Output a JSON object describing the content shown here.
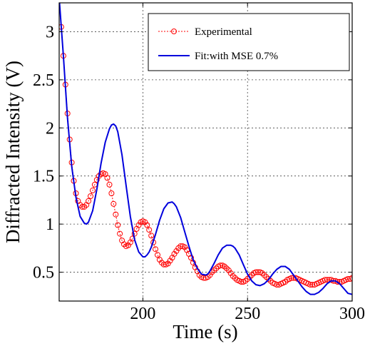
{
  "chart_data": {
    "type": "line",
    "title": "",
    "xlabel": "Time (s)",
    "ylabel": "Diffracted Intensity (V)",
    "xlim": [
      160,
      300
    ],
    "ylim": [
      0.2,
      3.3
    ],
    "xticks": [
      200,
      250,
      300
    ],
    "yticks": [
      0.5,
      1,
      1.5,
      2,
      2.5,
      3
    ],
    "xtick_labels": [
      "200",
      "250",
      "300"
    ],
    "ytick_labels": [
      "0.5",
      "1",
      "1.5",
      "2",
      "2.5",
      "3"
    ],
    "grid": true,
    "legend_position": "top-right",
    "series": [
      {
        "name": "Experimental",
        "style": "dotted line with circle markers",
        "color": "#ff0000",
        "x": [
          161,
          162,
          163,
          164,
          165,
          166,
          167,
          168,
          169,
          170,
          171,
          172,
          173,
          174,
          175,
          176,
          177,
          178,
          179,
          180,
          181,
          182,
          183,
          184,
          185,
          186,
          187,
          188,
          189,
          190,
          191,
          192,
          193,
          194,
          195,
          196,
          197,
          198,
          199,
          200,
          201,
          202,
          203,
          204,
          205,
          206,
          207,
          208,
          209,
          210,
          211,
          212,
          213,
          214,
          215,
          216,
          217,
          218,
          219,
          220,
          221,
          222,
          223,
          224,
          225,
          226,
          227,
          228,
          229,
          230,
          231,
          232,
          233,
          234,
          235,
          236,
          237,
          238,
          239,
          240,
          241,
          242,
          243,
          244,
          245,
          246,
          247,
          248,
          249,
          250,
          251,
          252,
          253,
          254,
          255,
          256,
          257,
          258,
          259,
          260,
          261,
          262,
          263,
          264,
          265,
          266,
          267,
          268,
          269,
          270,
          271,
          272,
          273,
          274,
          275,
          276,
          277,
          278,
          279,
          280,
          281,
          282,
          283,
          284,
          285,
          286,
          287,
          288,
          289,
          290,
          291,
          292,
          293,
          294,
          295,
          296,
          297,
          298,
          299,
          300
        ],
        "y": [
          3.05,
          2.75,
          2.45,
          2.15,
          1.88,
          1.64,
          1.45,
          1.32,
          1.24,
          1.2,
          1.18,
          1.18,
          1.2,
          1.24,
          1.29,
          1.35,
          1.41,
          1.46,
          1.5,
          1.52,
          1.53,
          1.52,
          1.48,
          1.41,
          1.32,
          1.21,
          1.1,
          0.99,
          0.9,
          0.83,
          0.79,
          0.77,
          0.78,
          0.81,
          0.85,
          0.9,
          0.95,
          0.99,
          1.02,
          1.03,
          1.02,
          0.99,
          0.94,
          0.88,
          0.81,
          0.74,
          0.68,
          0.63,
          0.6,
          0.58,
          0.58,
          0.59,
          0.62,
          0.65,
          0.69,
          0.72,
          0.75,
          0.77,
          0.77,
          0.76,
          0.73,
          0.69,
          0.65,
          0.6,
          0.55,
          0.51,
          0.47,
          0.45,
          0.44,
          0.44,
          0.45,
          0.47,
          0.5,
          0.52,
          0.54,
          0.56,
          0.57,
          0.57,
          0.56,
          0.54,
          0.52,
          0.49,
          0.46,
          0.44,
          0.42,
          0.41,
          0.4,
          0.4,
          0.41,
          0.43,
          0.45,
          0.47,
          0.49,
          0.5,
          0.5,
          0.5,
          0.49,
          0.47,
          0.45,
          0.43,
          0.41,
          0.39,
          0.38,
          0.37,
          0.37,
          0.38,
          0.39,
          0.4,
          0.42,
          0.43,
          0.44,
          0.44,
          0.44,
          0.43,
          0.42,
          0.41,
          0.4,
          0.39,
          0.38,
          0.37,
          0.37,
          0.37,
          0.38,
          0.39,
          0.4,
          0.41,
          0.42,
          0.42,
          0.42,
          0.42,
          0.41,
          0.41,
          0.4,
          0.4,
          0.4,
          0.41,
          0.42,
          0.43,
          0.43,
          0.44
        ]
      },
      {
        "name": "Fit:with MSE 0.7%",
        "style": "solid line",
        "color": "#0000dd",
        "x": [
          160,
          162,
          164,
          166,
          168,
          170,
          172,
          173,
          174,
          176,
          178,
          180,
          182,
          184,
          185,
          186,
          187,
          188,
          190,
          192,
          194,
          196,
          198,
          200,
          201,
          202,
          203,
          204,
          206,
          208,
          210,
          212,
          214,
          215,
          216,
          218,
          220,
          222,
          224,
          226,
          228,
          230,
          231,
          232,
          234,
          236,
          238,
          240,
          242,
          243,
          244,
          246,
          248,
          250,
          252,
          254,
          256,
          258,
          259,
          260,
          262,
          264,
          266,
          268,
          270,
          272,
          273,
          274,
          276,
          278,
          280,
          282,
          284,
          286,
          288,
          290,
          292,
          294,
          296,
          298,
          300
        ],
        "y": [
          3.35,
          2.75,
          2.1,
          1.6,
          1.28,
          1.08,
          1.01,
          1.0,
          1.02,
          1.14,
          1.36,
          1.63,
          1.85,
          1.99,
          2.03,
          2.04,
          2.02,
          1.96,
          1.72,
          1.4,
          1.08,
          0.84,
          0.71,
          0.66,
          0.66,
          0.68,
          0.71,
          0.76,
          0.89,
          1.04,
          1.16,
          1.22,
          1.23,
          1.21,
          1.18,
          1.07,
          0.92,
          0.77,
          0.63,
          0.54,
          0.48,
          0.47,
          0.48,
          0.51,
          0.59,
          0.68,
          0.75,
          0.78,
          0.78,
          0.77,
          0.75,
          0.68,
          0.58,
          0.48,
          0.41,
          0.37,
          0.36,
          0.38,
          0.4,
          0.42,
          0.48,
          0.53,
          0.56,
          0.56,
          0.53,
          0.47,
          0.44,
          0.41,
          0.35,
          0.3,
          0.27,
          0.27,
          0.29,
          0.33,
          0.38,
          0.41,
          0.41,
          0.38,
          0.33,
          0.28,
          0.27
        ]
      }
    ]
  }
}
